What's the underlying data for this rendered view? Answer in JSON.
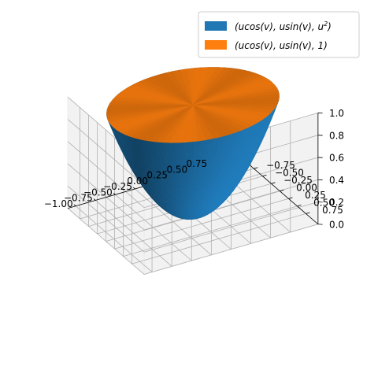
{
  "chart_data": {
    "type": "surface3d",
    "title": "",
    "xlabel": "",
    "ylabel": "",
    "zlabel": "",
    "grid": true,
    "legend_position": "upper-right",
    "xlim": [
      -1.0,
      0.75
    ],
    "ylim": [
      -0.75,
      0.75
    ],
    "zlim": [
      0.0,
      1.0
    ],
    "x_ticks": [
      "−1.00",
      "−0.75",
      "−0.50",
      "−0.25",
      "0.00",
      "0.25",
      "0.50",
      "0.75"
    ],
    "y_ticks": [
      "−0.75",
      "−0.50",
      "−0.25",
      "0.00",
      "0.25",
      "0.50",
      "0.75"
    ],
    "z_ticks": [
      "0.0",
      "0.2",
      "0.4",
      "0.6",
      "0.8",
      "1.0"
    ],
    "series": [
      {
        "name": "(ucos(v), usin(v), u²)",
        "label_base": "(ucos(v), usin(v), u",
        "label_sup": "2",
        "label_tail": ")",
        "color": "#1f77b4",
        "surface": "paraboloid",
        "x": "u·cos(v)",
        "y": "u·sin(v)",
        "z": "u²",
        "u_range": [
          0,
          1
        ],
        "v_range": [
          0,
          6.283
        ]
      },
      {
        "name": "(ucos(v), usin(v), 1)",
        "label_base": "(ucos(v), usin(v), 1)",
        "label_sup": "",
        "label_tail": "",
        "color": "#ff7f0e",
        "surface": "disk",
        "x": "u·cos(v)",
        "y": "u·sin(v)",
        "z": "1",
        "u_range": [
          0,
          1
        ],
        "v_range": [
          0,
          6.283
        ]
      }
    ]
  }
}
